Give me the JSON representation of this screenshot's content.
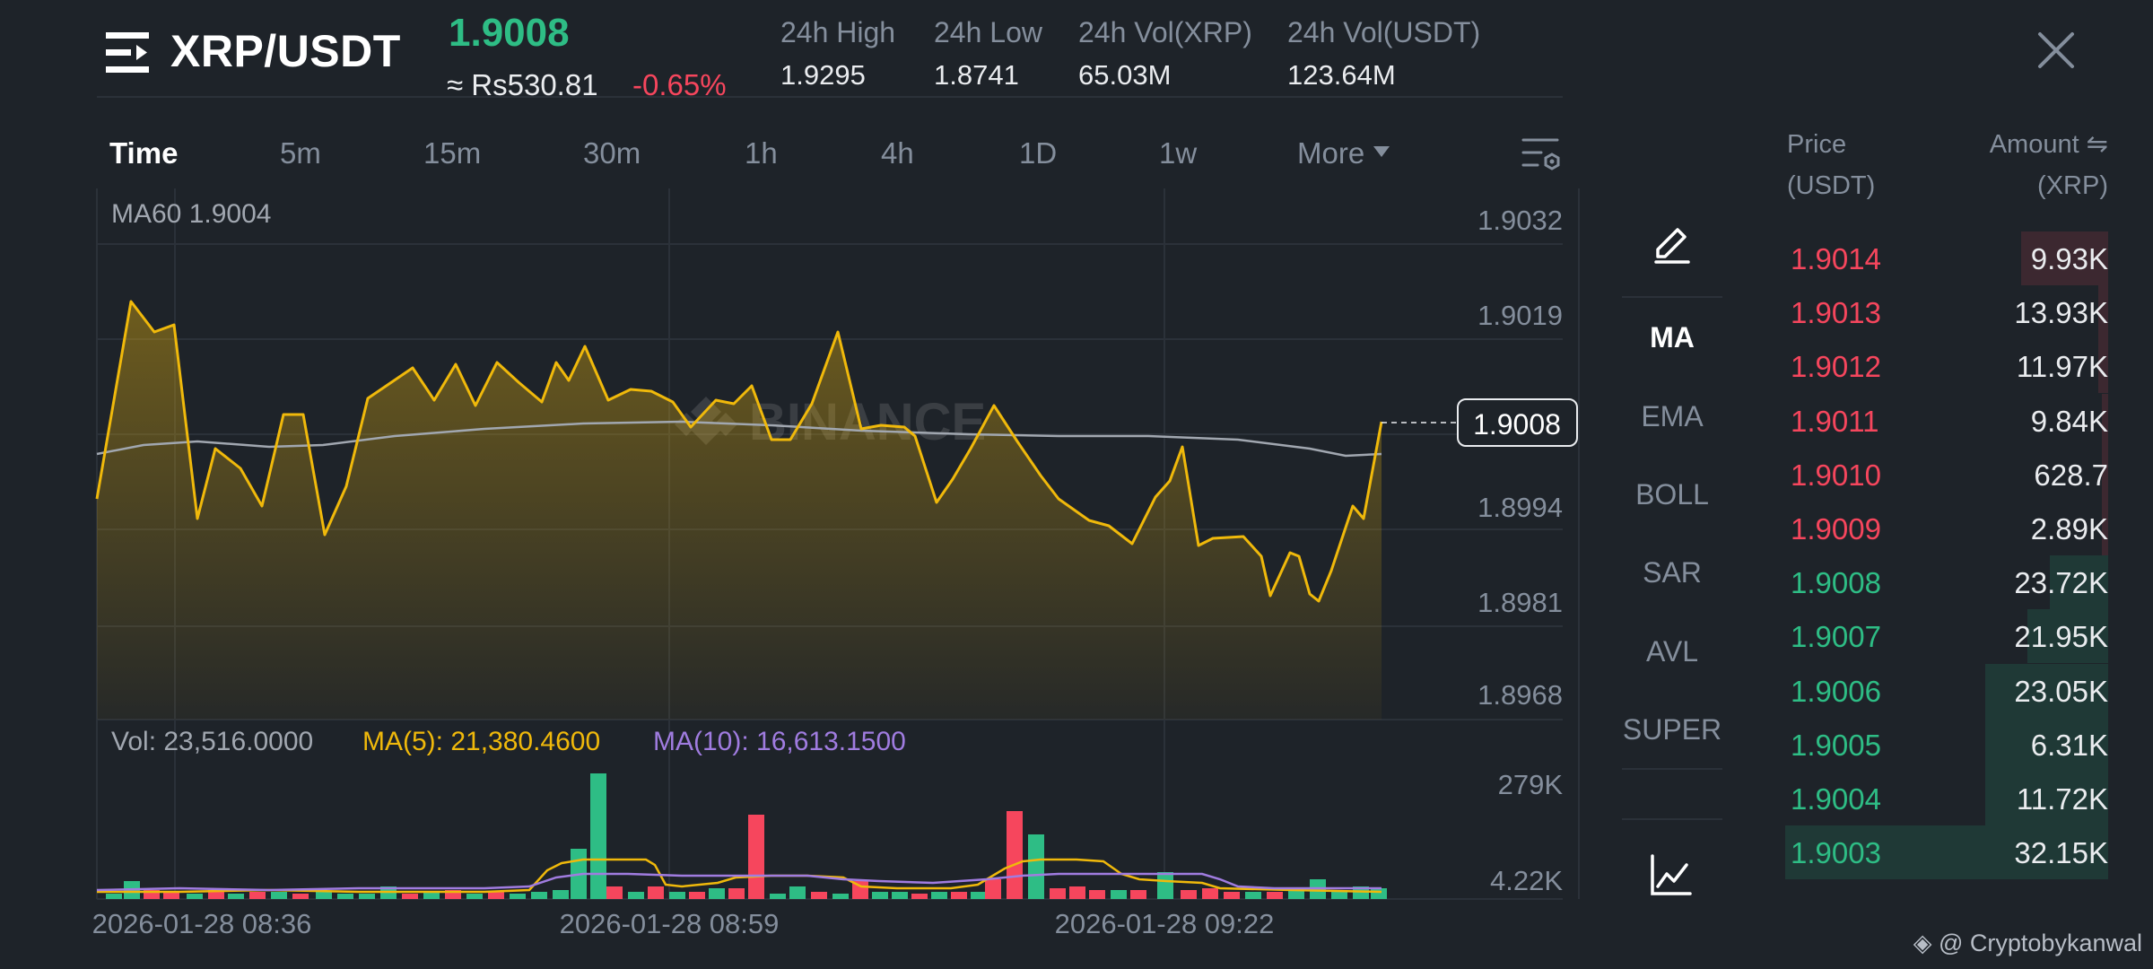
{
  "header": {
    "pair": "XRP/USDT",
    "last_price": "1.9008",
    "fiat_price": "≈ Rs530.81",
    "change_pct": "-0.65%",
    "stats": [
      {
        "label": "24h High",
        "value": "1.9295"
      },
      {
        "label": "24h Low",
        "value": "1.8741"
      },
      {
        "label": "24h Vol(XRP)",
        "value": "65.03M"
      },
      {
        "label": "24h Vol(USDT)",
        "value": "123.64M"
      }
    ]
  },
  "intervals": [
    "Time",
    "5m",
    "15m",
    "30m",
    "1h",
    "4h",
    "1D",
    "1w",
    "More"
  ],
  "active_interval": "Time",
  "chart": {
    "ma60_label": "MA60 1.9004",
    "price_ticks": [
      "1.9032",
      "1.9019",
      "1.8994",
      "1.8981",
      "1.8968"
    ],
    "current_price_tag": "1.9008",
    "watermark": "BINANCE",
    "volume": {
      "vol_label": "Vol: 23,516.0000",
      "ma5_label": "MA(5): 21,380.4600",
      "ma10_label": "MA(10): 16,613.1500",
      "ticks": [
        "279K",
        "4.22K"
      ]
    },
    "time_labels": [
      "2026-01-28 08:36",
      "2026-01-28 08:59",
      "2026-01-28 09:22"
    ]
  },
  "indicators": [
    "MA",
    "EMA",
    "BOLL",
    "SAR",
    "AVL",
    "SUPER"
  ],
  "active_indicator": "MA",
  "order_book": {
    "price_header": [
      "Price",
      "(USDT)"
    ],
    "amount_header": [
      "Amount ⇋",
      "(XRP)"
    ],
    "asks": [
      {
        "price": "1.9014",
        "amount": "9.93K",
        "depth": 0.27
      },
      {
        "price": "1.9013",
        "amount": "13.93K",
        "depth": 0.03
      },
      {
        "price": "1.9012",
        "amount": "11.97K",
        "depth": 0.03
      },
      {
        "price": "1.9011",
        "amount": "9.84K",
        "depth": 0.02
      },
      {
        "price": "1.9010",
        "amount": "628.7",
        "depth": 0.02
      },
      {
        "price": "1.9009",
        "amount": "2.89K",
        "depth": 0.02
      }
    ],
    "bids": [
      {
        "price": "1.9008",
        "amount": "23.72K",
        "depth": 0.18
      },
      {
        "price": "1.9007",
        "amount": "21.95K",
        "depth": 0.25
      },
      {
        "price": "1.9006",
        "amount": "23.05K",
        "depth": 0.38
      },
      {
        "price": "1.9005",
        "amount": "6.31K",
        "depth": 0.38
      },
      {
        "price": "1.9004",
        "amount": "11.72K",
        "depth": 0.38
      },
      {
        "price": "1.9003",
        "amount": "32.15K",
        "depth": 1.0
      }
    ]
  },
  "credit": "@ Cryptobykanwal",
  "colors": {
    "bg": "#1e2329",
    "up": "#2ebd85",
    "down": "#f6465d",
    "price_line": "#f0b90b",
    "ma60": "#a1a7b0",
    "ma5": "#f0b90b",
    "ma10": "#a07ce0"
  }
}
